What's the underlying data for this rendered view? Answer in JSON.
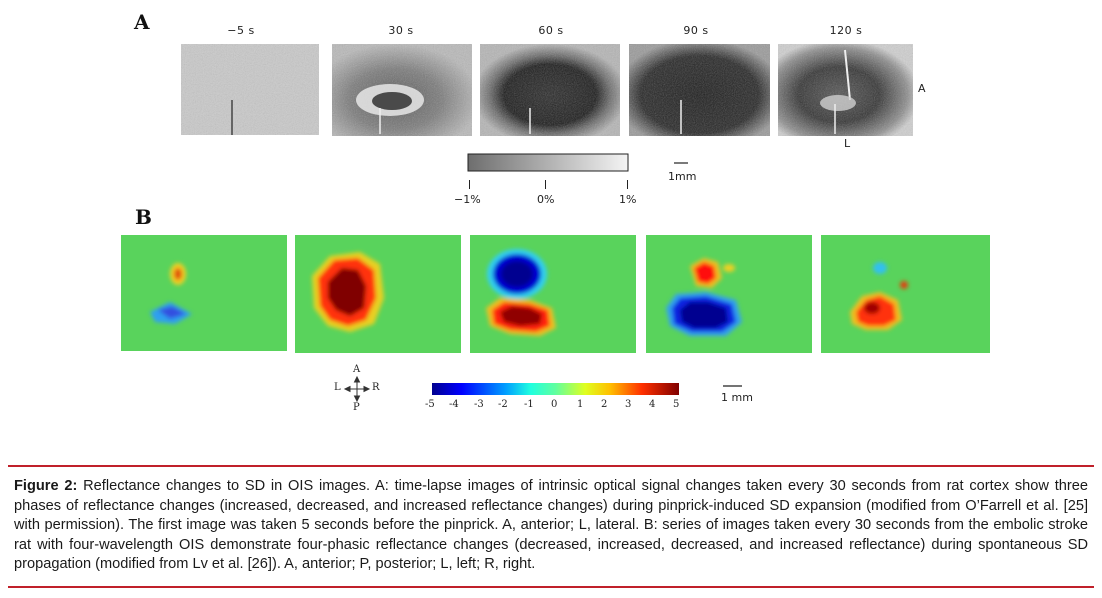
{
  "panelA": {
    "letter": "A",
    "time_labels": [
      "−5 s",
      "30 s",
      "60 s",
      "90 s",
      "120 s"
    ],
    "side_labels": {
      "anterior": "A",
      "lateral": "L"
    },
    "colorbar_ticks": [
      "−1%",
      "0%",
      "1%"
    ],
    "scale_bar": "1mm"
  },
  "panelB": {
    "letter": "B",
    "colorbar_ticks": [
      "-5",
      "-4",
      "-3",
      "-2",
      "-1",
      "0",
      "1",
      "2",
      "3",
      "4",
      "5"
    ],
    "scale_bar": "1 mm",
    "orientation": {
      "up": "A",
      "down": "P",
      "left": "L",
      "right": "R"
    }
  },
  "caption": {
    "label": "Figure 2:",
    "text": "Reflectance changes to SD in OIS images. A: time-lapse images of intrinsic optical signal changes taken every 30 seconds from rat cortex show three phases of reflectance changes (increased, decreased, and increased reflectance changes) during pinprick-induced SD expansion (modified from O’Farrell et al. [25] with permission). The first image was taken 5 seconds before the pinprick. A, anterior; L, lateral. B: series of images taken every 30 seconds from the embolic stroke rat with four-wavelength OIS demonstrate four-phasic reflectance changes (decreased, increased, decreased, and increased reflectance) during spontaneous SD propagation (modified from Lv et al. [26]). A, anterior; P, posterior; L, left; R, right."
  },
  "colors": {
    "rule": "#c0202a",
    "map_background": "#59d35c"
  }
}
